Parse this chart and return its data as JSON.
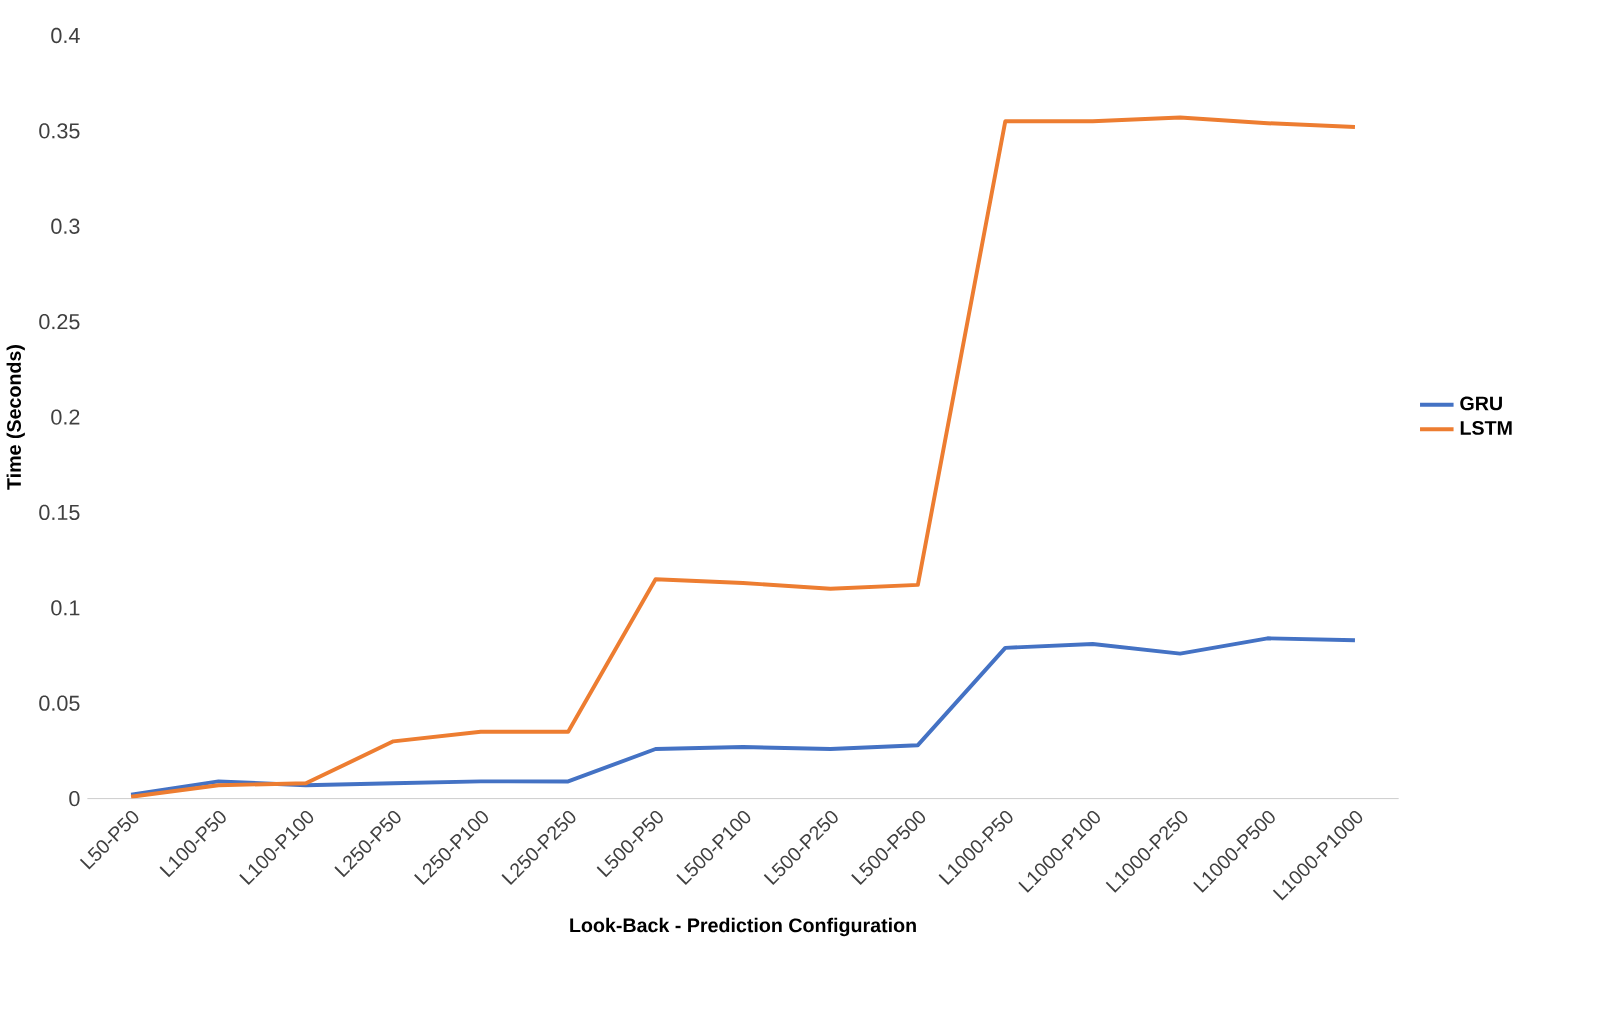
{
  "chart_data": {
    "type": "line",
    "xlabel": "Look-Back - Prediction Configuration",
    "ylabel": "Time (Seconds)",
    "categories": [
      "L50-P50",
      "L100-P50",
      "L100-P100",
      "L250-P50",
      "L250-P100",
      "L250-P250",
      "L500-P50",
      "L500-P100",
      "L500-P250",
      "L500-P500",
      "L1000-P50",
      "L1000-P100",
      "L1000-P250",
      "L1000-P500",
      "L1000-P1000"
    ],
    "series": [
      {
        "name": "GRU",
        "color": "#4472c4",
        "values": [
          0.002,
          0.009,
          0.007,
          0.008,
          0.009,
          0.009,
          0.026,
          0.027,
          0.026,
          0.028,
          0.079,
          0.081,
          0.076,
          0.084,
          0.083
        ]
      },
      {
        "name": "LSTM",
        "color": "#ed7d31",
        "values": [
          0.001,
          0.007,
          0.008,
          0.03,
          0.035,
          0.035,
          0.115,
          0.113,
          0.11,
          0.112,
          0.355,
          0.355,
          0.357,
          0.354,
          0.352
        ]
      }
    ],
    "ylim": [
      0,
      0.4
    ],
    "yticks": [
      0,
      0.05,
      0.1,
      0.15,
      0.2,
      0.25,
      0.3,
      0.35,
      0.4
    ],
    "grid": false,
    "legend": "right",
    "marker": "none",
    "line_style": "solid"
  }
}
